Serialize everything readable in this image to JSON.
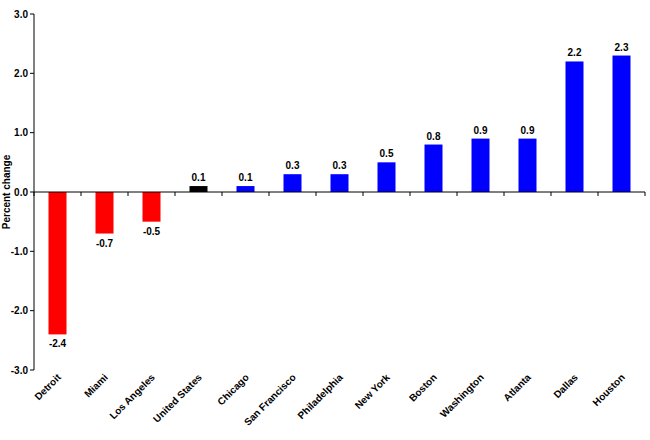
{
  "chart_data": {
    "type": "bar",
    "ylabel": "Percent change",
    "categories": [
      "Detroit",
      "Miami",
      "Los Angeles",
      "United States",
      "Chicago",
      "San Francisco",
      "Philadelphia",
      "New York",
      "Boston",
      "Washington",
      "Atlanta",
      "Dallas",
      "Houston"
    ],
    "values": [
      -2.4,
      -0.7,
      -0.5,
      0.1,
      0.1,
      0.3,
      0.3,
      0.5,
      0.8,
      0.9,
      0.9,
      2.2,
      2.3
    ],
    "colors": [
      "#ff0000",
      "#ff0000",
      "#ff0000",
      "#000000",
      "#0000ff",
      "#0000ff",
      "#0000ff",
      "#0000ff",
      "#0000ff",
      "#0000ff",
      "#0000ff",
      "#0000ff",
      "#0000ff"
    ],
    "ylim": [
      -3,
      3
    ],
    "yticks": [
      {
        "value": -3,
        "label": "-3.0"
      },
      {
        "value": -2,
        "label": "-2.0"
      },
      {
        "value": -1,
        "label": "-1.0"
      },
      {
        "value": 0,
        "label": "0.0"
      },
      {
        "value": 1,
        "label": "1.0"
      },
      {
        "value": 2,
        "label": "2.0"
      },
      {
        "value": 3,
        "label": "3.0"
      }
    ],
    "grid": false,
    "data_labels": true
  }
}
